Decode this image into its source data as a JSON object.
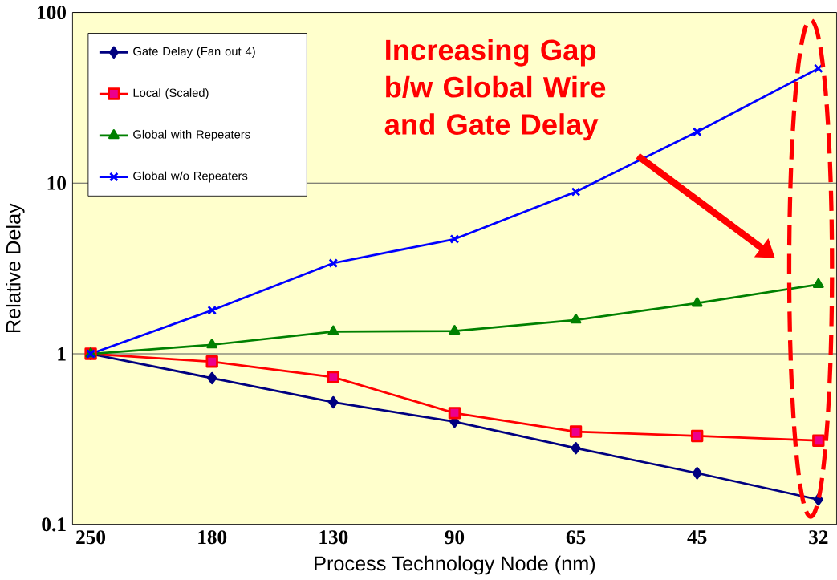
{
  "chart_data": {
    "type": "line",
    "xlabel": "Process Technology Node (nm)",
    "ylabel": "Relative Delay",
    "categories": [
      "250",
      "180",
      "130",
      "90",
      "65",
      "45",
      "32"
    ],
    "series": [
      {
        "name": "Gate Delay (Fan out 4)",
        "color": "#000080",
        "marker": "diamond",
        "values": [
          1,
          0.72,
          0.52,
          0.4,
          0.28,
          0.2,
          0.14
        ]
      },
      {
        "name": "Local (Scaled)",
        "color": "#ff0000",
        "marker": "square",
        "values": [
          1,
          0.9,
          0.73,
          0.45,
          0.35,
          0.33,
          0.31
        ]
      },
      {
        "name": "Global with Repeaters",
        "color": "#008000",
        "marker": "triangle",
        "values": [
          1,
          1.13,
          1.35,
          1.36,
          1.58,
          1.98,
          2.55
        ]
      },
      {
        "name": "Global w/o Repeaters",
        "color": "#0000ff",
        "marker": "cross",
        "values": [
          1,
          1.8,
          3.4,
          4.7,
          8.9,
          20,
          47
        ]
      }
    ],
    "log": "y",
    "ylim": [
      0.1,
      100
    ],
    "yticks": [
      0.1,
      1,
      10,
      100
    ],
    "grid": "y",
    "legend": "top left",
    "annotations": [
      "Increasing Gap b/w Global Wire and Gate Delay"
    ]
  }
}
